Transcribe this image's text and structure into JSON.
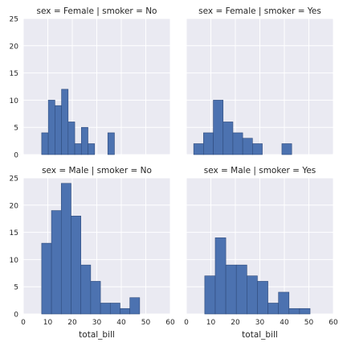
{
  "chart_data": {
    "type": "bar",
    "layout": "facet-grid-2x2",
    "style": "seaborn-darkgrid",
    "bar_color": "#4c72b0",
    "bar_edge_color": "#2f4b7c",
    "panel_background": "#eaeaf2",
    "grid_color": "#ffffff",
    "grid": true,
    "x_ticks": [
      0,
      10,
      20,
      30,
      40,
      50,
      60
    ],
    "y_ticks": [
      0,
      5,
      10,
      15,
      20,
      25
    ],
    "xlim": [
      0,
      60
    ],
    "ylim": [
      0,
      25
    ],
    "facets": [
      {
        "title": "sex = Female | smoker = No",
        "xlabel": "",
        "bins": [
          {
            "x0": 7.5,
            "x1": 10.2,
            "value": 4
          },
          {
            "x0": 10.2,
            "x1": 12.9,
            "value": 10
          },
          {
            "x0": 12.9,
            "x1": 15.6,
            "value": 9
          },
          {
            "x0": 15.6,
            "x1": 18.3,
            "value": 12
          },
          {
            "x0": 18.3,
            "x1": 21.0,
            "value": 6
          },
          {
            "x0": 21.0,
            "x1": 23.7,
            "value": 2
          },
          {
            "x0": 23.7,
            "x1": 26.4,
            "value": 5
          },
          {
            "x0": 26.4,
            "x1": 29.1,
            "value": 2
          },
          {
            "x0": 29.1,
            "x1": 31.8,
            "value": 0
          },
          {
            "x0": 31.8,
            "x1": 34.5,
            "value": 0
          },
          {
            "x0": 34.5,
            "x1": 37.2,
            "value": 4
          }
        ]
      },
      {
        "title": "sex = Female | smoker = Yes",
        "xlabel": "",
        "bins": [
          {
            "x0": 3.0,
            "x1": 7.0,
            "value": 2
          },
          {
            "x0": 7.0,
            "x1": 11.0,
            "value": 4
          },
          {
            "x0": 11.0,
            "x1": 15.0,
            "value": 10
          },
          {
            "x0": 15.0,
            "x1": 19.0,
            "value": 6
          },
          {
            "x0": 19.0,
            "x1": 23.0,
            "value": 4
          },
          {
            "x0": 23.0,
            "x1": 27.0,
            "value": 3
          },
          {
            "x0": 27.0,
            "x1": 31.0,
            "value": 2
          },
          {
            "x0": 31.0,
            "x1": 35.0,
            "value": 0
          },
          {
            "x0": 35.0,
            "x1": 39.0,
            "value": 0
          },
          {
            "x0": 39.0,
            "x1": 43.0,
            "value": 2
          }
        ]
      },
      {
        "title": "sex = Male | smoker = No",
        "xlabel": "total_bill",
        "bins": [
          {
            "x0": 7.5,
            "x1": 11.5,
            "value": 13
          },
          {
            "x0": 11.5,
            "x1": 15.5,
            "value": 19
          },
          {
            "x0": 15.5,
            "x1": 19.5,
            "value": 24
          },
          {
            "x0": 19.5,
            "x1": 23.5,
            "value": 18
          },
          {
            "x0": 23.5,
            "x1": 27.5,
            "value": 9
          },
          {
            "x0": 27.5,
            "x1": 31.5,
            "value": 6
          },
          {
            "x0": 31.5,
            "x1": 35.5,
            "value": 2
          },
          {
            "x0": 35.5,
            "x1": 39.5,
            "value": 2
          },
          {
            "x0": 39.5,
            "x1": 43.5,
            "value": 1
          },
          {
            "x0": 43.5,
            "x1": 47.5,
            "value": 3
          }
        ]
      },
      {
        "title": "sex = Male | smoker = Yes",
        "xlabel": "total_bill",
        "bins": [
          {
            "x0": 7.5,
            "x1": 11.8,
            "value": 7
          },
          {
            "x0": 11.8,
            "x1": 16.1,
            "value": 14
          },
          {
            "x0": 16.1,
            "x1": 20.4,
            "value": 9
          },
          {
            "x0": 20.4,
            "x1": 24.7,
            "value": 9
          },
          {
            "x0": 24.7,
            "x1": 29.0,
            "value": 7
          },
          {
            "x0": 29.0,
            "x1": 33.3,
            "value": 6
          },
          {
            "x0": 33.3,
            "x1": 37.6,
            "value": 2
          },
          {
            "x0": 37.6,
            "x1": 41.9,
            "value": 4
          },
          {
            "x0": 41.9,
            "x1": 46.2,
            "value": 1
          },
          {
            "x0": 46.2,
            "x1": 50.5,
            "value": 1
          }
        ]
      }
    ]
  }
}
